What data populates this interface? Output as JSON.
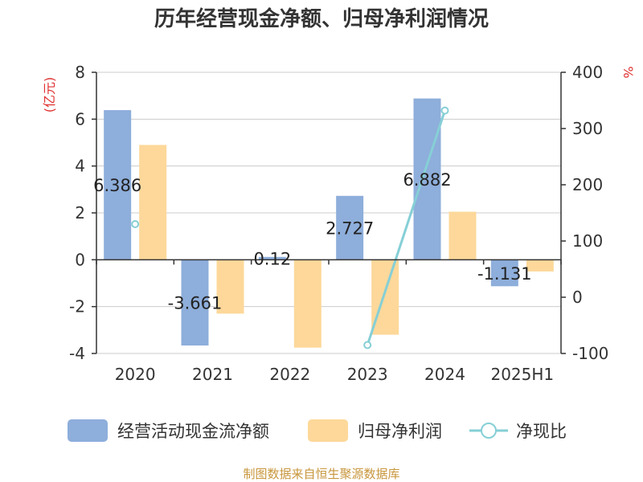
{
  "chart_data": {
    "type": "bar",
    "title": "历年经营现金净额、归母净利润情况",
    "categories": [
      "2020",
      "2021",
      "2022",
      "2023",
      "2024",
      "2025H1"
    ],
    "left_axis": {
      "unit": "(亿元)",
      "ylim": [
        -4,
        8
      ],
      "ticks": [
        "8",
        "6",
        "4",
        "2",
        "0",
        "-2",
        "-4"
      ]
    },
    "right_axis": {
      "unit": "%",
      "ylim": [
        -100,
        400
      ],
      "ticks": [
        "400",
        "300",
        "200",
        "100",
        "0",
        "-100"
      ]
    },
    "series": [
      {
        "name": "经营活动现金流净额",
        "type": "bar",
        "axis": "left",
        "color": "#8eaedb",
        "values": [
          6.386,
          -3.661,
          0.12,
          2.727,
          6.882,
          -1.131
        ],
        "labels": [
          "6.386",
          "-3.661",
          "0.12",
          "2.727",
          "6.882",
          "-1.131"
        ]
      },
      {
        "name": "归母净利润",
        "type": "bar",
        "axis": "left",
        "color": "#fdd89a",
        "values": [
          4.9,
          -2.3,
          -3.75,
          -3.2,
          2.05,
          -0.5
        ]
      },
      {
        "name": "净现比",
        "type": "line",
        "axis": "right",
        "color": "#86cfd6",
        "values": [
          130,
          null,
          null,
          -85,
          332,
          null
        ]
      }
    ],
    "grid": true,
    "legend": "bottom"
  },
  "source": "制图数据来自恒生聚源数据库"
}
